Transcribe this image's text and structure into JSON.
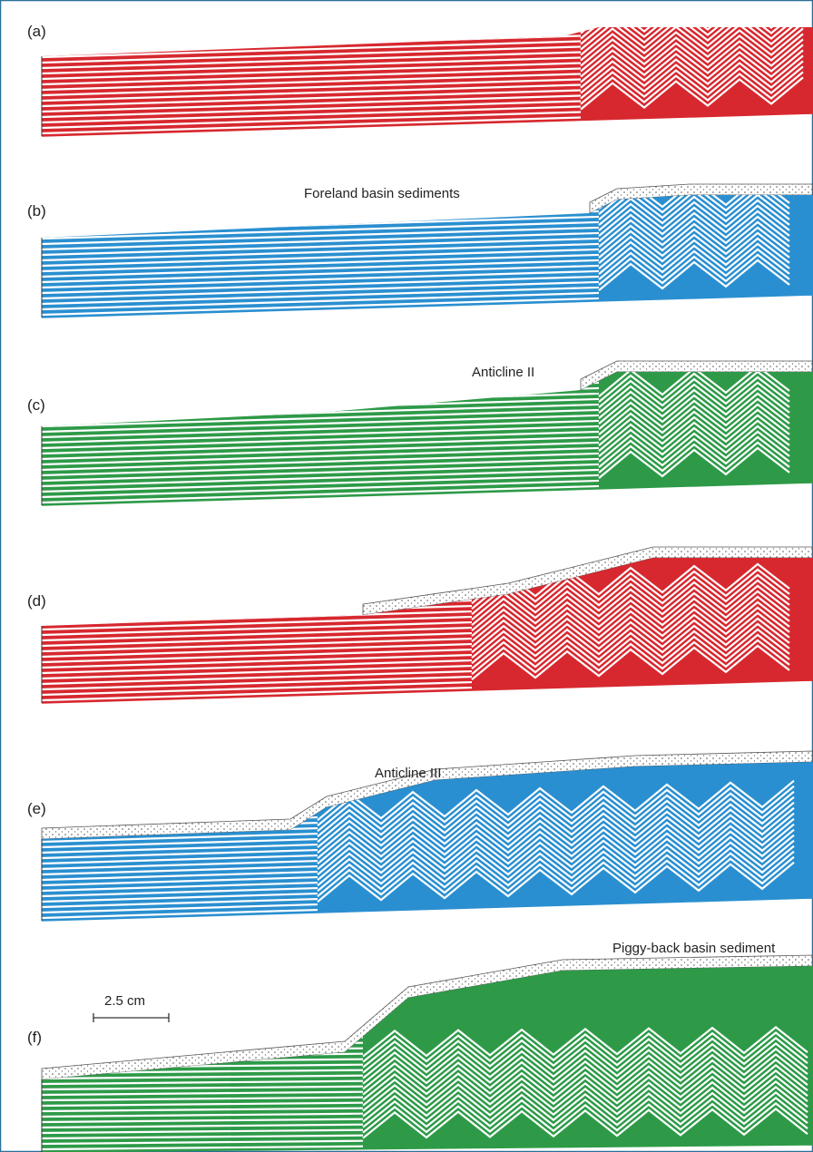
{
  "panels": [
    {
      "label": "(a)"
    },
    {
      "label": "(b)",
      "annotation": "Foreland basin sediments"
    },
    {
      "label": "(c)",
      "annotation": "Anticline II"
    },
    {
      "label": "(d)"
    },
    {
      "label": "(e)",
      "annotation": "Anticline III"
    },
    {
      "label": "(f)",
      "annotation": "Piggy-back basin sediment"
    }
  ],
  "scale_bar": {
    "label": "2.5 cm"
  }
}
